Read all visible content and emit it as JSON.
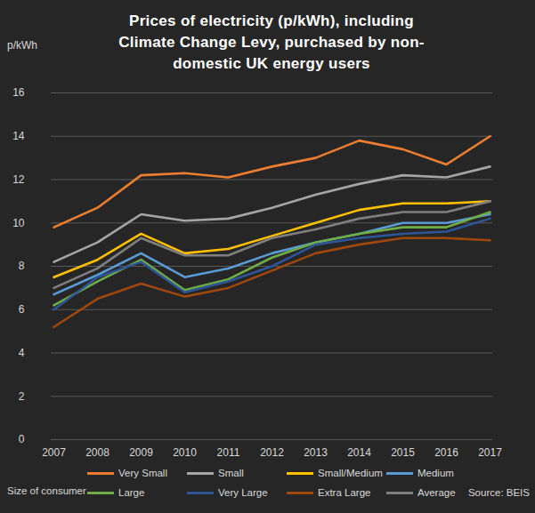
{
  "chart_data": {
    "type": "line",
    "title": "Prices of electricity (p/kWh), including Climate Change Levy, purchased by non-domestic UK energy users",
    "ylabel": "p/kWh",
    "legend_title": "Size of consumer",
    "source": "Source: BEIS",
    "categories": [
      "2007",
      "2008",
      "2009",
      "2010",
      "2011",
      "2012",
      "2013",
      "2014",
      "2015",
      "2016",
      "2017"
    ],
    "series": [
      {
        "name": "Very Small",
        "color": "#ed7d31",
        "values": [
          9.8,
          10.7,
          12.2,
          12.3,
          12.1,
          12.6,
          13.0,
          13.8,
          13.4,
          12.7,
          14.0
        ]
      },
      {
        "name": "Small",
        "color": "#a5a5a5",
        "values": [
          8.2,
          9.1,
          10.4,
          10.1,
          10.2,
          10.7,
          11.3,
          11.8,
          12.2,
          12.1,
          12.6
        ]
      },
      {
        "name": "Small/Medium",
        "color": "#ffc000",
        "values": [
          7.5,
          8.3,
          9.5,
          8.6,
          8.8,
          9.4,
          10.0,
          10.6,
          10.9,
          10.9,
          11.0
        ]
      },
      {
        "name": "Medium",
        "color": "#5b9bd5",
        "values": [
          6.7,
          7.6,
          8.6,
          7.5,
          7.9,
          8.6,
          9.1,
          9.5,
          10.0,
          10.0,
          10.4
        ]
      },
      {
        "name": "Large",
        "color": "#70ad47",
        "values": [
          6.2,
          7.3,
          8.3,
          6.9,
          7.4,
          8.4,
          9.1,
          9.5,
          9.8,
          9.8,
          10.5
        ]
      },
      {
        "name": "Very Large",
        "color": "#2e5597",
        "values": [
          6.0,
          7.5,
          8.2,
          6.8,
          7.3,
          8.0,
          9.0,
          9.3,
          9.5,
          9.6,
          10.2
        ]
      },
      {
        "name": "Extra Large",
        "color": "#9e480e",
        "values": [
          5.2,
          6.5,
          7.2,
          6.6,
          7.0,
          7.8,
          8.6,
          9.0,
          9.3,
          9.3,
          9.2
        ]
      },
      {
        "name": "Average",
        "color": "#7f7f7f",
        "values": [
          7.0,
          7.9,
          9.3,
          8.5,
          8.5,
          9.3,
          9.7,
          10.2,
          10.5,
          10.5,
          11.0
        ]
      }
    ],
    "ylim": [
      0,
      16
    ],
    "yticks": [
      0,
      2,
      4,
      6,
      8,
      10,
      12,
      14,
      16
    ],
    "grid": true,
    "legend": "bottom"
  }
}
